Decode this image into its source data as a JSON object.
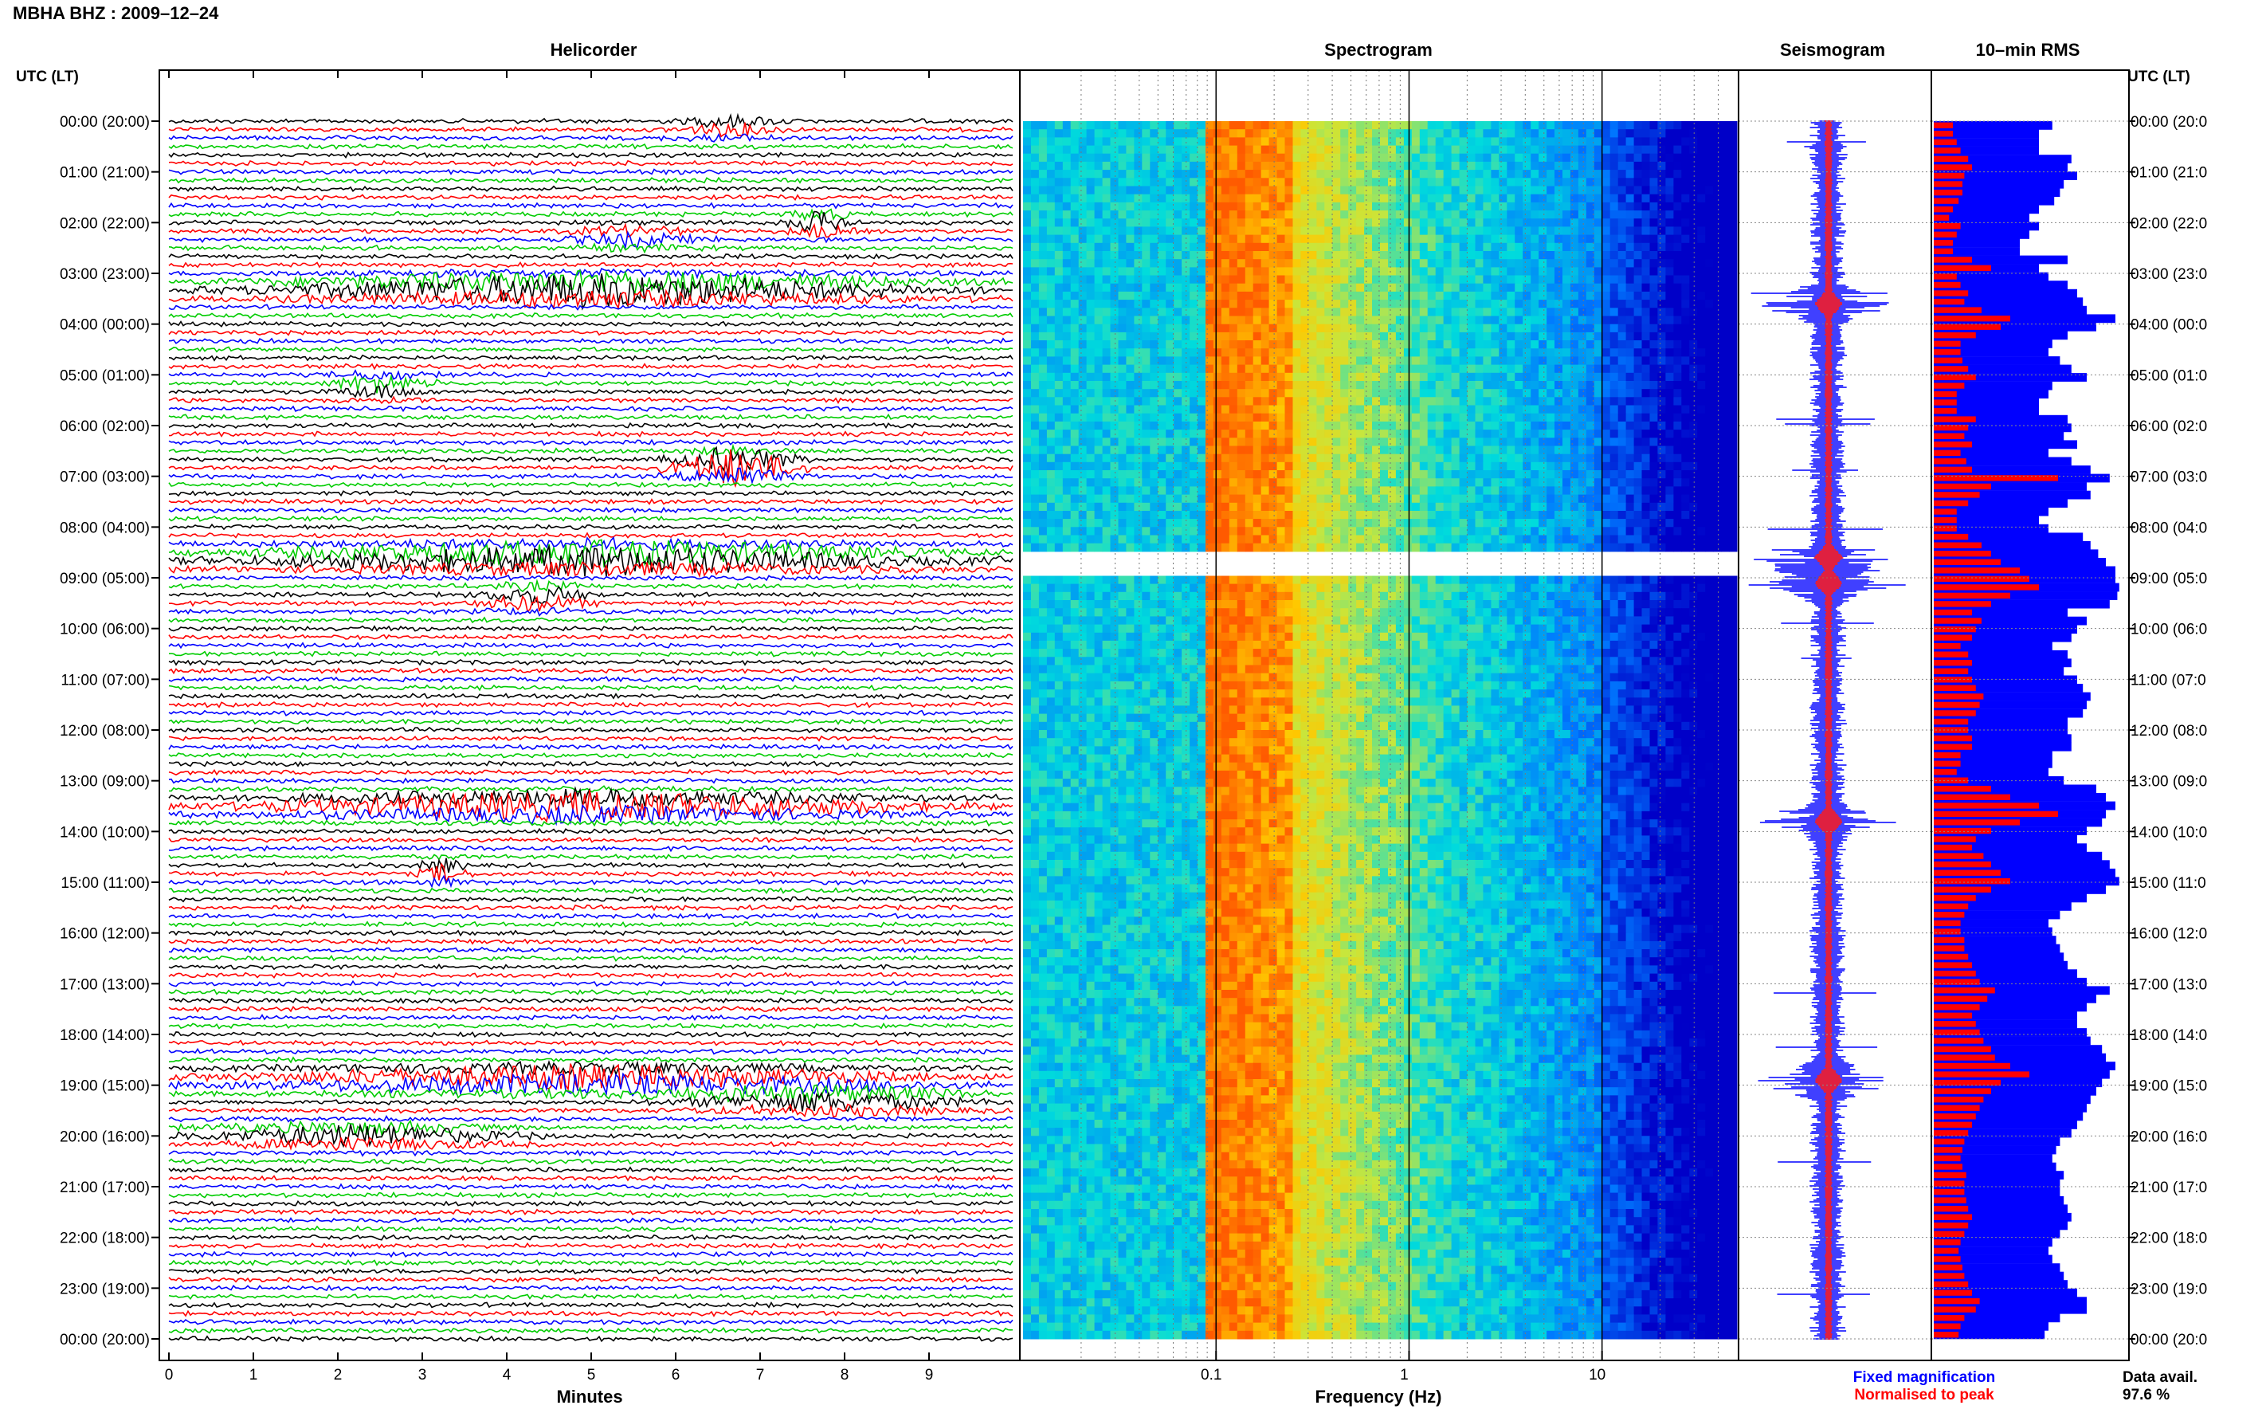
{
  "title": "MBHA BHZ : 2009–12–24",
  "panels": {
    "helicorder": "Helicorder",
    "spectrogram": "Spectrogram",
    "seismogram": "Seismogram",
    "rms": "10–min RMS"
  },
  "axis_header_left": "UTC (LT)",
  "axis_header_right": "UTC (LT)",
  "time_labels": [
    "00:00 (20:00)",
    "01:00 (21:00)",
    "02:00 (22:00)",
    "03:00 (23:00)",
    "04:00 (00:00)",
    "05:00 (01:00)",
    "06:00 (02:00)",
    "07:00 (03:00)",
    "08:00 (04:00)",
    "09:00 (05:00)",
    "10:00 (06:00)",
    "11:00 (07:00)",
    "12:00 (08:00)",
    "13:00 (09:00)",
    "14:00 (10:00)",
    "15:00 (11:00)",
    "16:00 (12:00)",
    "17:00 (13:00)",
    "18:00 (14:00)",
    "19:00 (15:00)",
    "20:00 (16:00)",
    "21:00 (17:00)",
    "22:00 (18:00)",
    "23:00 (19:00)",
    "00:00 (20:00)"
  ],
  "time_labels_right": [
    "00:00 (20:0",
    "01:00 (21:0",
    "02:00 (22:0",
    "03:00 (23:0",
    "04:00 (00:0",
    "05:00 (01:0",
    "06:00 (02:0",
    "07:00 (03:0",
    "08:00 (04:0",
    "09:00 (05:0",
    "10:00 (06:0",
    "11:00 (07:0",
    "12:00 (08:0",
    "13:00 (09:0",
    "14:00 (10:0",
    "15:00 (11:0",
    "16:00 (12:0",
    "17:00 (13:0",
    "18:00 (14:0",
    "19:00 (15:0",
    "20:00 (16:0",
    "21:00 (17:0",
    "22:00 (18:0",
    "23:00 (19:0",
    "00:00 (20:0"
  ],
  "minutes_axis": {
    "label": "Minutes",
    "ticks": [
      "0",
      "1",
      "2",
      "3",
      "4",
      "5",
      "6",
      "7",
      "8",
      "9"
    ]
  },
  "frequency_axis": {
    "label": "Frequency (Hz)",
    "ticks": [
      "0.1",
      "1",
      "10"
    ],
    "scale": "log"
  },
  "legend": {
    "fixed": "Fixed magnification",
    "normalised": "Normalised to peak",
    "fixed_color": "#0000ff",
    "normalised_color": "#ff0000"
  },
  "data_avail": {
    "label": "Data avail.",
    "value": "97.6 %"
  },
  "colors": {
    "trace_cycle": [
      "#000000",
      "#ff0000",
      "#0000ff",
      "#00cc00"
    ],
    "rms_fixed": "#0000ff",
    "rms_normalised": "#ff0000",
    "spectrogram_low": "#0000c8",
    "spectrogram_high": "#ff6a00"
  },
  "chart_data": [
    {
      "type": "line",
      "name": "helicorder",
      "title": "Helicorder",
      "xlabel": "Minutes",
      "xlim": [
        0,
        10
      ],
      "ylim_hours": [
        0,
        24
      ],
      "lines_per_hour": 6,
      "description_of_events": [
        {
          "hour": 0.1,
          "minute_start": 5.8,
          "minute_end": 7.5,
          "amplitude": 2
        },
        {
          "hour": 2.0,
          "minute_start": 7.2,
          "minute_end": 8.2,
          "amplitude": 3
        },
        {
          "hour": 2.3,
          "minute_start": 4.5,
          "minute_end": 6.5,
          "amplitude": 2
        },
        {
          "hour": 3.3,
          "minute_start": 0.2,
          "minute_end": 9.9,
          "amplitude": 5
        },
        {
          "hour": 5.2,
          "minute_start": 1.8,
          "minute_end": 3.2,
          "amplitude": 3
        },
        {
          "hour": 6.8,
          "minute_start": 5.8,
          "minute_end": 7.6,
          "amplitude": 6
        },
        {
          "hour": 8.6,
          "minute_start": 0.0,
          "minute_end": 9.9,
          "amplitude": 5
        },
        {
          "hour": 9.4,
          "minute_start": 3.5,
          "minute_end": 5.2,
          "amplitude": 3
        },
        {
          "hour": 13.5,
          "minute_start": 0.0,
          "minute_end": 9.9,
          "amplitude": 4
        },
        {
          "hour": 14.8,
          "minute_start": 2.9,
          "minute_end": 3.6,
          "amplitude": 3
        },
        {
          "hour": 18.9,
          "minute_start": 0.0,
          "minute_end": 9.9,
          "amplitude": 4
        },
        {
          "hour": 20.0,
          "minute_start": 0.0,
          "minute_end": 4.5,
          "amplitude": 3
        },
        {
          "hour": 19.3,
          "minute_start": 5.6,
          "minute_end": 9.9,
          "amplitude": 3
        }
      ]
    },
    {
      "type": "heatmap",
      "name": "spectrogram",
      "title": "Spectrogram",
      "xlabel": "Frequency (Hz)",
      "xscale": "log",
      "xlim": [
        0.01,
        50
      ],
      "ylim_hours": [
        0,
        24
      ],
      "gaps_hours": [
        8.4,
        9.0
      ]
    },
    {
      "type": "line",
      "name": "seismogram",
      "title": "Seismogram",
      "ylim_hours": [
        0,
        24
      ],
      "peaks_hours": [
        3.6,
        8.6,
        9.1,
        13.8,
        18.9
      ]
    },
    {
      "type": "bar",
      "name": "rms",
      "title": "10–min RMS",
      "ylim_hours": [
        0,
        24
      ],
      "series": [
        {
          "name": "Fixed magnification",
          "values": [
            0.62,
            0.55,
            0.55,
            0.55,
            0.72,
            0.7,
            0.75,
            0.68,
            0.66,
            0.63,
            0.55,
            0.5,
            0.55,
            0.5,
            0.45,
            0.45,
            0.7,
            0.55,
            0.6,
            0.7,
            0.75,
            0.78,
            0.8,
            0.95,
            0.85,
            0.7,
            0.62,
            0.6,
            0.66,
            0.72,
            0.8,
            0.62,
            0.6,
            0.55,
            0.55,
            0.7,
            0.72,
            0.68,
            0.75,
            0.6,
            0.72,
            0.82,
            0.92,
            0.8,
            0.82,
            0.7,
            0.6,
            0.55,
            0.6,
            0.78,
            0.82,
            0.86,
            0.9,
            0.95,
            0.95,
            0.97,
            0.96,
            0.92,
            0.7,
            0.8,
            0.75,
            0.72,
            0.62,
            0.7,
            0.72,
            0.68,
            0.75,
            0.78,
            0.82,
            0.8,
            0.78,
            0.7,
            0.7,
            0.72,
            0.72,
            0.62,
            0.62,
            0.6,
            0.68,
            0.85,
            0.9,
            0.95,
            0.9,
            0.88,
            0.8,
            0.75,
            0.8,
            0.88,
            0.92,
            0.95,
            0.97,
            0.9,
            0.8,
            0.72,
            0.66,
            0.6,
            0.62,
            0.64,
            0.66,
            0.68,
            0.7,
            0.75,
            0.8,
            0.92,
            0.85,
            0.8,
            0.75,
            0.75,
            0.8,
            0.82,
            0.88,
            0.9,
            0.95,
            0.92,
            0.88,
            0.85,
            0.82,
            0.8,
            0.78,
            0.75,
            0.72,
            0.66,
            0.64,
            0.62,
            0.64,
            0.68,
            0.66,
            0.66,
            0.68,
            0.7,
            0.72,
            0.7,
            0.66,
            0.62,
            0.6,
            0.62,
            0.66,
            0.68,
            0.7,
            0.75,
            0.8,
            0.8,
            0.66,
            0.6,
            0.58
          ]
        },
        {
          "name": "Normalised to peak",
          "values": [
            0.1,
            0.1,
            0.12,
            0.14,
            0.18,
            0.2,
            0.16,
            0.15,
            0.15,
            0.13,
            0.1,
            0.08,
            0.14,
            0.12,
            0.1,
            0.1,
            0.2,
            0.3,
            0.12,
            0.14,
            0.18,
            0.16,
            0.25,
            0.4,
            0.35,
            0.22,
            0.14,
            0.14,
            0.15,
            0.18,
            0.22,
            0.16,
            0.12,
            0.12,
            0.12,
            0.22,
            0.18,
            0.16,
            0.2,
            0.14,
            0.17,
            0.2,
            0.65,
            0.3,
            0.24,
            0.18,
            0.12,
            0.12,
            0.12,
            0.18,
            0.25,
            0.3,
            0.35,
            0.45,
            0.5,
            0.55,
            0.4,
            0.3,
            0.2,
            0.25,
            0.22,
            0.2,
            0.14,
            0.18,
            0.2,
            0.18,
            0.2,
            0.22,
            0.26,
            0.24,
            0.22,
            0.18,
            0.18,
            0.2,
            0.2,
            0.14,
            0.14,
            0.12,
            0.18,
            0.3,
            0.4,
            0.55,
            0.65,
            0.45,
            0.3,
            0.22,
            0.2,
            0.26,
            0.3,
            0.35,
            0.4,
            0.3,
            0.22,
            0.18,
            0.16,
            0.14,
            0.14,
            0.16,
            0.16,
            0.18,
            0.2,
            0.22,
            0.24,
            0.32,
            0.28,
            0.24,
            0.2,
            0.22,
            0.24,
            0.26,
            0.3,
            0.32,
            0.4,
            0.5,
            0.35,
            0.3,
            0.26,
            0.24,
            0.22,
            0.2,
            0.18,
            0.16,
            0.15,
            0.14,
            0.15,
            0.17,
            0.16,
            0.16,
            0.17,
            0.18,
            0.2,
            0.18,
            0.16,
            0.14,
            0.13,
            0.14,
            0.15,
            0.16,
            0.18,
            0.2,
            0.24,
            0.22,
            0.16,
            0.14,
            0.13
          ]
        }
      ]
    }
  ]
}
